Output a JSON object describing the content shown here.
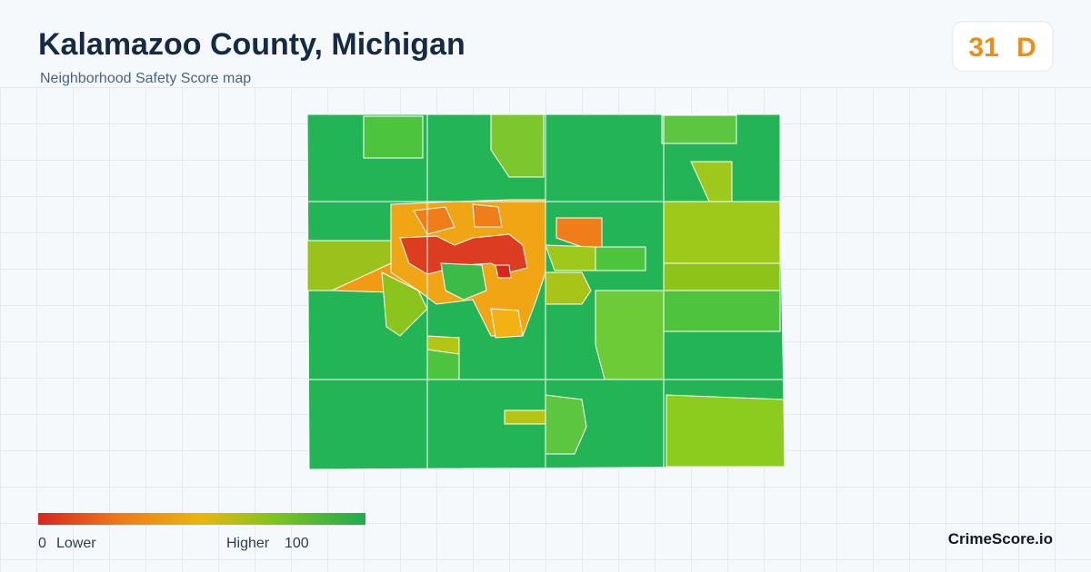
{
  "header": {
    "title": "Kalamazoo County, Michigan",
    "subtitle": "Neighborhood Safety Score map"
  },
  "score": {
    "value": 31,
    "grade": "D"
  },
  "legend": {
    "min": 0,
    "min_label": "Lower",
    "max_label": "Higher",
    "max": 100
  },
  "brand": "CrimeScore.io"
}
